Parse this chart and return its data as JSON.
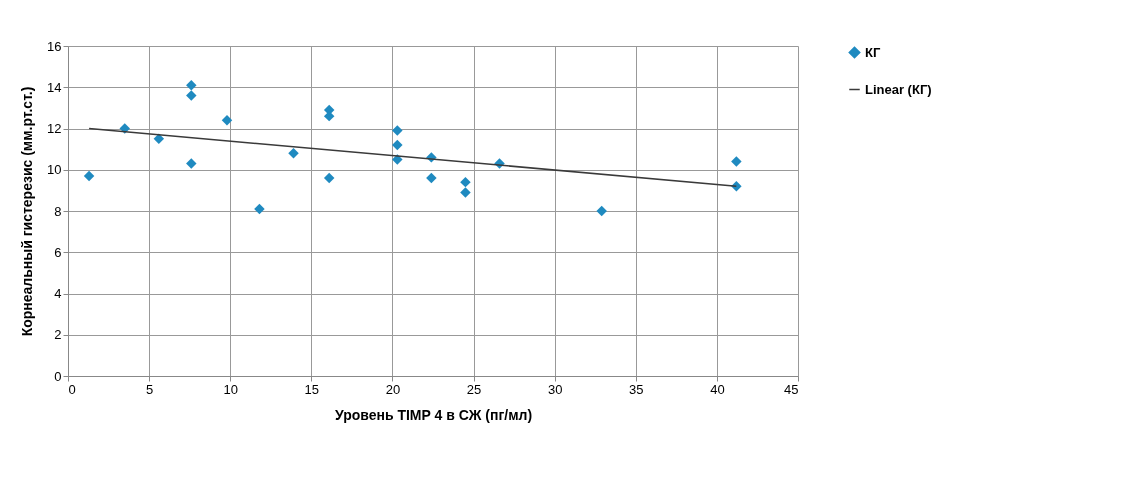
{
  "chart_data": {
    "type": "scatter",
    "xlabel": "Уровень TIMP 4 в СЖ (пг/мл)",
    "ylabel": "Корнеальный гистерезис (мм.рт.ст.)",
    "xlim": [
      0,
      45
    ],
    "xticks": [
      0,
      5,
      10,
      15,
      20,
      25,
      30,
      35,
      40,
      45
    ],
    "ylim": [
      0,
      16
    ],
    "yticks": [
      0,
      2,
      4,
      6,
      8,
      10,
      12,
      14,
      16
    ],
    "grid": true,
    "legend": "right",
    "series": [
      {
        "name": "КГ",
        "color": "#1f8ac0",
        "marker": "diamond",
        "x": [
          1.3,
          3.5,
          5.6,
          7.6,
          7.6,
          7.6,
          9.8,
          11.8,
          13.9,
          16.1,
          16.1,
          16.1,
          20.3,
          20.3,
          20.3,
          22.4,
          22.4,
          24.5,
          24.5,
          26.6,
          32.9,
          41.2,
          41.2
        ],
        "values": [
          9.7,
          12.0,
          11.5,
          14.1,
          13.6,
          10.3,
          12.4,
          8.1,
          10.8,
          12.9,
          12.6,
          9.6,
          11.9,
          11.2,
          10.5,
          10.6,
          9.6,
          9.4,
          8.9,
          10.3,
          8.0,
          10.4,
          9.2
        ]
      },
      {
        "name": "Linear (КГ)",
        "type": "line",
        "color": "#3a3a3a",
        "line_style": "solid",
        "x": [
          1.3,
          41.2
        ],
        "values": [
          12.0,
          9.2
        ]
      }
    ]
  }
}
